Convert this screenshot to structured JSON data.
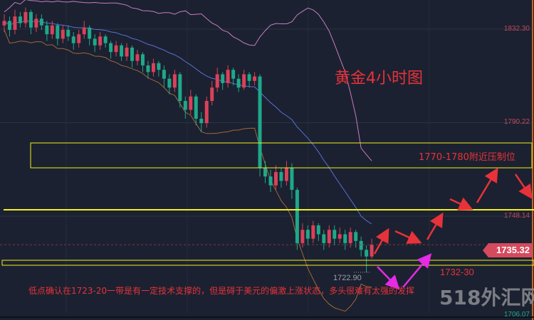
{
  "chart_data": {
    "type": "candlestick",
    "title": "黄金4小时图",
    "y_ticks": [
      1832.3,
      1790.22,
      1748.14,
      1706.07
    ],
    "y_tick_labels": [
      "1832.30",
      "1790.22",
      "1748.14",
      "1706.07"
    ],
    "ylim": [
      1704,
      1845
    ],
    "colors": {
      "up": "#d9415a",
      "down": "#1fa88a",
      "upper_band": "#c77dc2",
      "middle_band": "#5b6fd6",
      "lower_band": "#a0673a"
    },
    "candles_ohlc": [
      [
        1834,
        1839,
        1831,
        1836
      ],
      [
        1836,
        1838,
        1829,
        1832
      ],
      [
        1832,
        1841,
        1830,
        1838
      ],
      [
        1838,
        1840,
        1833,
        1835
      ],
      [
        1835,
        1842,
        1833,
        1840
      ],
      [
        1840,
        1841,
        1830,
        1833
      ],
      [
        1833,
        1839,
        1831,
        1837
      ],
      [
        1837,
        1839,
        1832,
        1834
      ],
      [
        1834,
        1836,
        1827,
        1830
      ],
      [
        1830,
        1836,
        1828,
        1834
      ],
      [
        1834,
        1835,
        1825,
        1828
      ],
      [
        1828,
        1834,
        1826,
        1832
      ],
      [
        1832,
        1834,
        1827,
        1829
      ],
      [
        1829,
        1831,
        1823,
        1826
      ],
      [
        1826,
        1832,
        1824,
        1830
      ],
      [
        1830,
        1836,
        1828,
        1833
      ],
      [
        1833,
        1834,
        1825,
        1828
      ],
      [
        1828,
        1830,
        1822,
        1825
      ],
      [
        1825,
        1831,
        1823,
        1829
      ],
      [
        1829,
        1830,
        1824,
        1826
      ],
      [
        1826,
        1827,
        1819,
        1822
      ],
      [
        1822,
        1827,
        1820,
        1825
      ],
      [
        1825,
        1826,
        1818,
        1820
      ],
      [
        1820,
        1826,
        1818,
        1824
      ],
      [
        1824,
        1825,
        1815,
        1818
      ],
      [
        1818,
        1823,
        1816,
        1821
      ],
      [
        1821,
        1822,
        1813,
        1816
      ],
      [
        1816,
        1818,
        1810,
        1813
      ],
      [
        1813,
        1819,
        1811,
        1817
      ],
      [
        1817,
        1818,
        1811,
        1814
      ],
      [
        1814,
        1816,
        1806,
        1810
      ],
      [
        1810,
        1812,
        1803,
        1806
      ],
      [
        1806,
        1814,
        1804,
        1812
      ],
      [
        1812,
        1813,
        1797,
        1800
      ],
      [
        1800,
        1802,
        1792,
        1796
      ],
      [
        1796,
        1805,
        1794,
        1802
      ],
      [
        1802,
        1803,
        1789,
        1792
      ],
      [
        1792,
        1795,
        1786,
        1790
      ],
      [
        1790,
        1802,
        1788,
        1800
      ],
      [
        1800,
        1809,
        1798,
        1806
      ],
      [
        1806,
        1815,
        1804,
        1812
      ],
      [
        1812,
        1813,
        1805,
        1808
      ],
      [
        1808,
        1816,
        1806,
        1814
      ],
      [
        1814,
        1815,
        1807,
        1810
      ],
      [
        1810,
        1812,
        1804,
        1806
      ],
      [
        1806,
        1814,
        1805,
        1812
      ],
      [
        1812,
        1813,
        1806,
        1809
      ],
      [
        1809,
        1813,
        1807,
        1811
      ],
      [
        1811,
        1812,
        1766,
        1770
      ],
      [
        1770,
        1773,
        1763,
        1766
      ],
      [
        1766,
        1769,
        1759,
        1762
      ],
      [
        1762,
        1771,
        1760,
        1768
      ],
      [
        1768,
        1770,
        1761,
        1764
      ],
      [
        1764,
        1773,
        1762,
        1770
      ],
      [
        1770,
        1772,
        1756,
        1760
      ],
      [
        1760,
        1761,
        1733,
        1736
      ],
      [
        1736,
        1745,
        1734,
        1742
      ],
      [
        1742,
        1744,
        1735,
        1738
      ],
      [
        1738,
        1746,
        1736,
        1744
      ],
      [
        1744,
        1745,
        1737,
        1740
      ],
      [
        1740,
        1742,
        1733,
        1736
      ],
      [
        1736,
        1744,
        1734,
        1742
      ],
      [
        1742,
        1744,
        1735,
        1738
      ],
      [
        1738,
        1743,
        1736,
        1740
      ],
      [
        1740,
        1742,
        1733,
        1736
      ],
      [
        1736,
        1743,
        1734,
        1741
      ],
      [
        1741,
        1742,
        1734,
        1737
      ],
      [
        1737,
        1739,
        1730,
        1733
      ],
      [
        1733,
        1735,
        1722.9,
        1730
      ],
      [
        1730,
        1738,
        1729,
        1735.32
      ]
    ],
    "current_price": "1735.32",
    "low_label": "1722.90",
    "resistance_zone": [
      1770,
      1780
    ],
    "grid": true
  },
  "annotations": {
    "title": "黄金4小时图",
    "zone_label": "1770-1780附近压制位",
    "support_label": "1732-30",
    "note": "低点确认在1723-20一带是有一定技术支撑的，但是碍于美元的偏激上涨状态，多头很难有太强的发挥",
    "accent_red": "#e8323a",
    "accent_magenta": "#e62ae6",
    "line_yellow": "#f2ef1c"
  },
  "watermark": "518外汇网"
}
